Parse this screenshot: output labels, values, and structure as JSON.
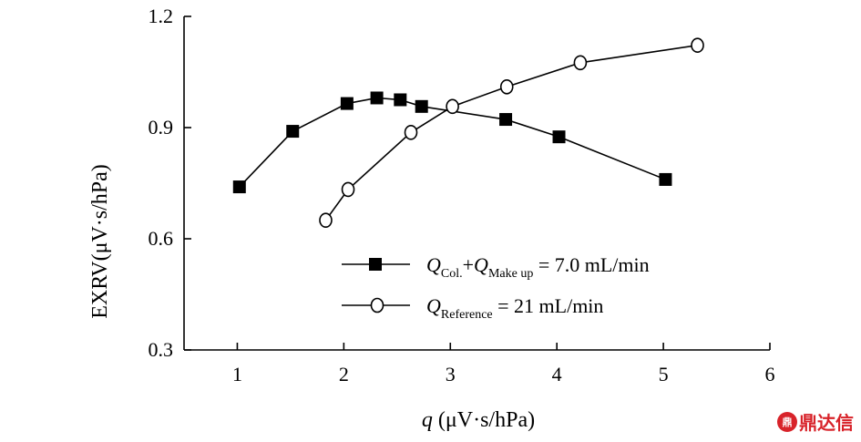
{
  "chart_data": {
    "type": "line",
    "xlabel_var": "q",
    "xlabel_unit": " (μV·s/hPa)",
    "ylabel": "EXRV(μV·s/hPa)",
    "xlim": [
      0.5,
      6
    ],
    "ylim": [
      0.3,
      1.2
    ],
    "xticks": [
      1,
      2,
      3,
      4,
      5,
      6
    ],
    "yticks": [
      0.3,
      0.6,
      0.9,
      1.2
    ],
    "ytick_labels": [
      "0.3",
      "0.6",
      "0.9",
      "1.2"
    ],
    "grid": false,
    "legend_position": "bottom-center",
    "series": [
      {
        "marker": "filled-square",
        "color": "#000000",
        "legend_parts": {
          "q1": "Q",
          "sub1": "Col.",
          "plus": "+",
          "q2": "Q",
          "sub2": "Make up",
          "rest": " = 7.0 mL/min"
        },
        "x": [
          1.02,
          1.52,
          2.03,
          2.31,
          2.53,
          2.73,
          3.52,
          4.02,
          5.02
        ],
        "y": [
          0.74,
          0.89,
          0.965,
          0.98,
          0.975,
          0.957,
          0.922,
          0.875,
          0.76
        ]
      },
      {
        "marker": "open-circle",
        "color": "#000000",
        "legend_parts": {
          "q1": "Q",
          "sub1": "Reference",
          "rest": " = 21 mL/min"
        },
        "x": [
          1.83,
          2.04,
          2.63,
          3.02,
          3.53,
          4.22,
          5.32
        ],
        "y": [
          0.65,
          0.733,
          0.887,
          0.957,
          1.01,
          1.075,
          1.122
        ]
      }
    ]
  },
  "watermark": {
    "logo_text": "鼎",
    "text": "鼎达信",
    "color": "#d8232a"
  }
}
